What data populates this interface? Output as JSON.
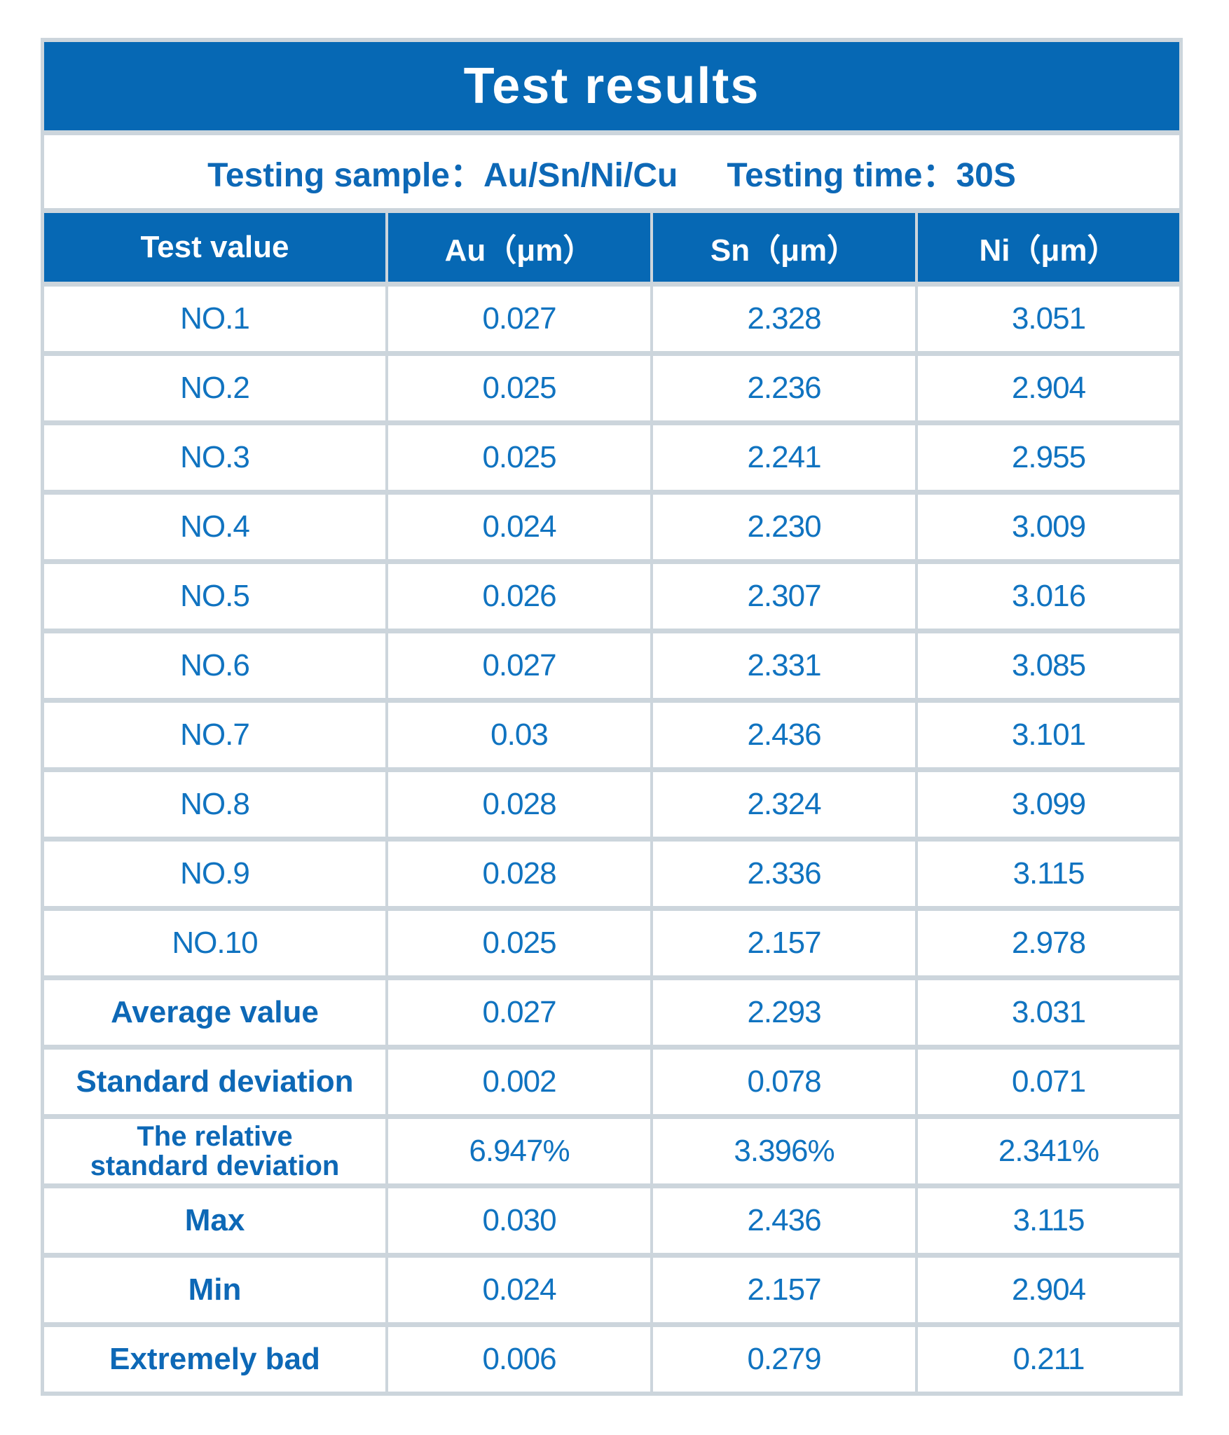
{
  "title": "Test results",
  "subtitle": {
    "sample": "Testing sample：Au/Sn/Ni/Cu",
    "time": "Testing time：30S"
  },
  "colors": {
    "header_blue": "#0668b4",
    "value_blue": "#1073c0",
    "label_blue": "#0d68b6",
    "gridline": "#ccd5dc"
  },
  "table": {
    "columns": [
      "Test value",
      "Au（μm）",
      "Sn（μm）",
      "Ni（μm）"
    ],
    "rows": [
      {
        "label": "NO.1",
        "emphasis": false,
        "values": [
          "0.027",
          "2.328",
          "3.051"
        ]
      },
      {
        "label": "NO.2",
        "emphasis": false,
        "values": [
          "0.025",
          "2.236",
          "2.904"
        ]
      },
      {
        "label": "NO.3",
        "emphasis": false,
        "values": [
          "0.025",
          "2.241",
          "2.955"
        ]
      },
      {
        "label": "NO.4",
        "emphasis": false,
        "values": [
          "0.024",
          "2.230",
          "3.009"
        ]
      },
      {
        "label": "NO.5",
        "emphasis": false,
        "values": [
          "0.026",
          "2.307",
          "3.016"
        ]
      },
      {
        "label": "NO.6",
        "emphasis": false,
        "values": [
          "0.027",
          "2.331",
          "3.085"
        ]
      },
      {
        "label": "NO.7",
        "emphasis": false,
        "values": [
          "0.03",
          "2.436",
          "3.101"
        ]
      },
      {
        "label": "NO.8",
        "emphasis": false,
        "values": [
          "0.028",
          "2.324",
          "3.099"
        ]
      },
      {
        "label": "NO.9",
        "emphasis": false,
        "values": [
          "0.028",
          "2.336",
          "3.115"
        ]
      },
      {
        "label": "NO.10",
        "emphasis": false,
        "values": [
          "0.025",
          "2.157",
          "2.978"
        ]
      },
      {
        "label": "Average value",
        "emphasis": true,
        "values": [
          "0.027",
          "2.293",
          "3.031"
        ]
      },
      {
        "label": "Standard deviation",
        "emphasis": true,
        "values": [
          "0.002",
          "0.078",
          "0.071"
        ]
      },
      {
        "label": "The relative\nstandard deviation",
        "emphasis": true,
        "values": [
          "6.947%",
          "3.396%",
          "2.341%"
        ]
      },
      {
        "label": "Max",
        "emphasis": true,
        "values": [
          "0.030",
          "2.436",
          "3.115"
        ]
      },
      {
        "label": "Min",
        "emphasis": true,
        "values": [
          "0.024",
          "2.157",
          "2.904"
        ]
      },
      {
        "label": "Extremely bad",
        "emphasis": true,
        "values": [
          "0.006",
          "0.279",
          "0.211"
        ]
      }
    ]
  }
}
